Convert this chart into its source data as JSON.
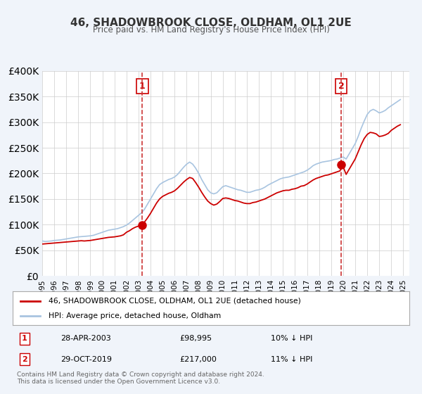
{
  "title": "46, SHADOWBROOK CLOSE, OLDHAM, OL1 2UE",
  "subtitle": "Price paid vs. HM Land Registry's House Price Index (HPI)",
  "bg_color": "#f0f4fa",
  "plot_bg_color": "#ffffff",
  "hpi_color": "#a8c4e0",
  "price_color": "#cc0000",
  "marker_color": "#cc0000",
  "vline_color": "#cc3333",
  "ylim": [
    0,
    400000
  ],
  "yticks": [
    0,
    50000,
    100000,
    150000,
    200000,
    250000,
    300000,
    350000,
    400000
  ],
  "xlim_start": 1995.0,
  "xlim_end": 2025.5,
  "event1_x": 2003.32,
  "event1_y": 98995,
  "event1_label": "1",
  "event2_x": 2019.83,
  "event2_y": 217000,
  "event2_label": "2",
  "legend_line1": "46, SHADOWBROOK CLOSE, OLDHAM, OL1 2UE (detached house)",
  "legend_line2": "HPI: Average price, detached house, Oldham",
  "table_row1": [
    "1",
    "28-APR-2003",
    "£98,995",
    "10% ↓ HPI"
  ],
  "table_row2": [
    "2",
    "29-OCT-2019",
    "£217,000",
    "11% ↓ HPI"
  ],
  "footer1": "Contains HM Land Registry data © Crown copyright and database right 2024.",
  "footer2": "This data is licensed under the Open Government Licence v3.0.",
  "hpi_data_x": [
    1995.0,
    1995.25,
    1995.5,
    1995.75,
    1996.0,
    1996.25,
    1996.5,
    1996.75,
    1997.0,
    1997.25,
    1997.5,
    1997.75,
    1998.0,
    1998.25,
    1998.5,
    1998.75,
    1999.0,
    1999.25,
    1999.5,
    1999.75,
    2000.0,
    2000.25,
    2000.5,
    2000.75,
    2001.0,
    2001.25,
    2001.5,
    2001.75,
    2002.0,
    2002.25,
    2002.5,
    2002.75,
    2003.0,
    2003.25,
    2003.5,
    2003.75,
    2004.0,
    2004.25,
    2004.5,
    2004.75,
    2005.0,
    2005.25,
    2005.5,
    2005.75,
    2006.0,
    2006.25,
    2006.5,
    2006.75,
    2007.0,
    2007.25,
    2007.5,
    2007.75,
    2008.0,
    2008.25,
    2008.5,
    2008.75,
    2009.0,
    2009.25,
    2009.5,
    2009.75,
    2010.0,
    2010.25,
    2010.5,
    2010.75,
    2011.0,
    2011.25,
    2011.5,
    2011.75,
    2012.0,
    2012.25,
    2012.5,
    2012.75,
    2013.0,
    2013.25,
    2013.5,
    2013.75,
    2014.0,
    2014.25,
    2014.5,
    2014.75,
    2015.0,
    2015.25,
    2015.5,
    2015.75,
    2016.0,
    2016.25,
    2016.5,
    2016.75,
    2017.0,
    2017.25,
    2017.5,
    2017.75,
    2018.0,
    2018.25,
    2018.5,
    2018.75,
    2019.0,
    2019.25,
    2019.5,
    2019.75,
    2020.0,
    2020.25,
    2020.5,
    2020.75,
    2021.0,
    2021.25,
    2021.5,
    2021.75,
    2022.0,
    2022.25,
    2022.5,
    2022.75,
    2023.0,
    2023.25,
    2023.5,
    2023.75,
    2024.0,
    2024.25,
    2024.5,
    2024.75
  ],
  "hpi_data_y": [
    68000,
    67000,
    67500,
    68000,
    69000,
    69500,
    70000,
    71000,
    72000,
    73000,
    74000,
    75000,
    76000,
    76500,
    77000,
    77500,
    78000,
    79000,
    81000,
    83000,
    85000,
    87000,
    89000,
    90000,
    91000,
    92000,
    94000,
    96000,
    99000,
    103000,
    108000,
    113000,
    118000,
    123000,
    130000,
    140000,
    150000,
    160000,
    170000,
    178000,
    182000,
    185000,
    188000,
    190000,
    193000,
    198000,
    205000,
    212000,
    218000,
    222000,
    218000,
    210000,
    200000,
    188000,
    178000,
    168000,
    162000,
    160000,
    162000,
    168000,
    174000,
    176000,
    174000,
    172000,
    170000,
    168000,
    167000,
    165000,
    163000,
    163000,
    165000,
    167000,
    168000,
    170000,
    173000,
    177000,
    180000,
    183000,
    186000,
    189000,
    191000,
    192000,
    193000,
    195000,
    197000,
    199000,
    201000,
    203000,
    206000,
    210000,
    215000,
    218000,
    220000,
    222000,
    223000,
    224000,
    225000,
    227000,
    228000,
    230000,
    232000,
    228000,
    238000,
    248000,
    258000,
    272000,
    288000,
    302000,
    315000,
    322000,
    325000,
    322000,
    318000,
    320000,
    323000,
    328000,
    332000,
    336000,
    340000,
    344000
  ],
  "price_data_x": [
    1995.0,
    1995.5,
    1996.0,
    1996.5,
    1997.0,
    1997.5,
    1998.0,
    1998.5,
    1999.0,
    1999.5,
    2000.0,
    2000.5,
    2001.0,
    2001.5,
    2002.0,
    2002.5,
    2003.32,
    2019.83
  ],
  "price_data_y": [
    62000,
    63000,
    64000,
    65000,
    66000,
    67000,
    68000,
    69000,
    70000,
    72000,
    74000,
    75000,
    76000,
    78000,
    85000,
    90000,
    98995,
    217000
  ]
}
